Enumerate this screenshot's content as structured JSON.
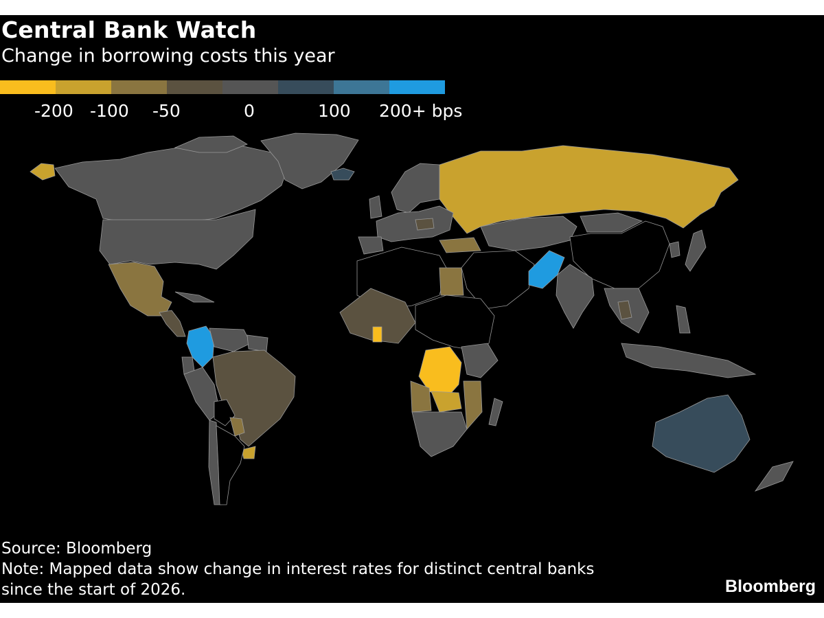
{
  "title": "Central Bank Watch",
  "subtitle": "Change in borrowing costs this year",
  "legend": {
    "bins": [
      {
        "color": "#f9bd1e"
      },
      {
        "color": "#c9a22e"
      },
      {
        "color": "#8a7540"
      },
      {
        "color": "#5b5240"
      },
      {
        "color": "#555555"
      },
      {
        "color": "#374c5b"
      },
      {
        "color": "#3d7696"
      },
      {
        "color": "#1f9be0"
      }
    ],
    "labels": [
      "-200",
      "-100",
      "-50",
      "0",
      "100",
      "200+ bps"
    ]
  },
  "categories": {
    "cut_200": "#f9bd1e",
    "cut_100": "#c9a22e",
    "cut_50": "#8a7540",
    "cut_small": "#5b5240",
    "unchanged": "#555555",
    "hike_small": "#374c5b",
    "hike_100": "#3d7696",
    "hike_200": "#1f9be0",
    "no_data": "#000000"
  },
  "source": "Source: Bloomberg",
  "note_line1": "Note: Mapped data show change in interest rates for distinct central banks",
  "note_line2": "since the start of 2026.",
  "brand": "Bloomberg"
}
